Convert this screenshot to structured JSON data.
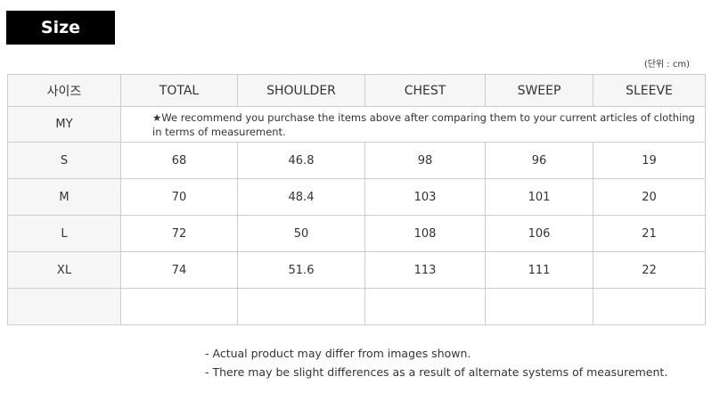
{
  "title": "Size",
  "unit": "(단위 : cm)",
  "headers": [
    "사이즈",
    "TOTAL",
    "SHOULDER",
    "CHEST",
    "SWEEP",
    "SLEEVE"
  ],
  "my": {
    "label": "MY",
    "note": "★We recommend you purchase the items above after comparing them to your current articles of clothing in terms of measurement."
  },
  "rows": [
    [
      "S",
      "68",
      "46.8",
      "98",
      "96",
      "19"
    ],
    [
      "M",
      "70",
      "48.4",
      "103",
      "101",
      "20"
    ],
    [
      "L",
      "72",
      "50",
      "108",
      "106",
      "21"
    ],
    [
      "XL",
      "74",
      "51.6",
      "113",
      "111",
      "22"
    ],
    [
      "",
      "",
      "",
      "",
      "",
      ""
    ]
  ],
  "notes": [
    "- Actual product may differ from images shown.",
    "- There may be slight differences as a result of alternate systems of measurement."
  ]
}
